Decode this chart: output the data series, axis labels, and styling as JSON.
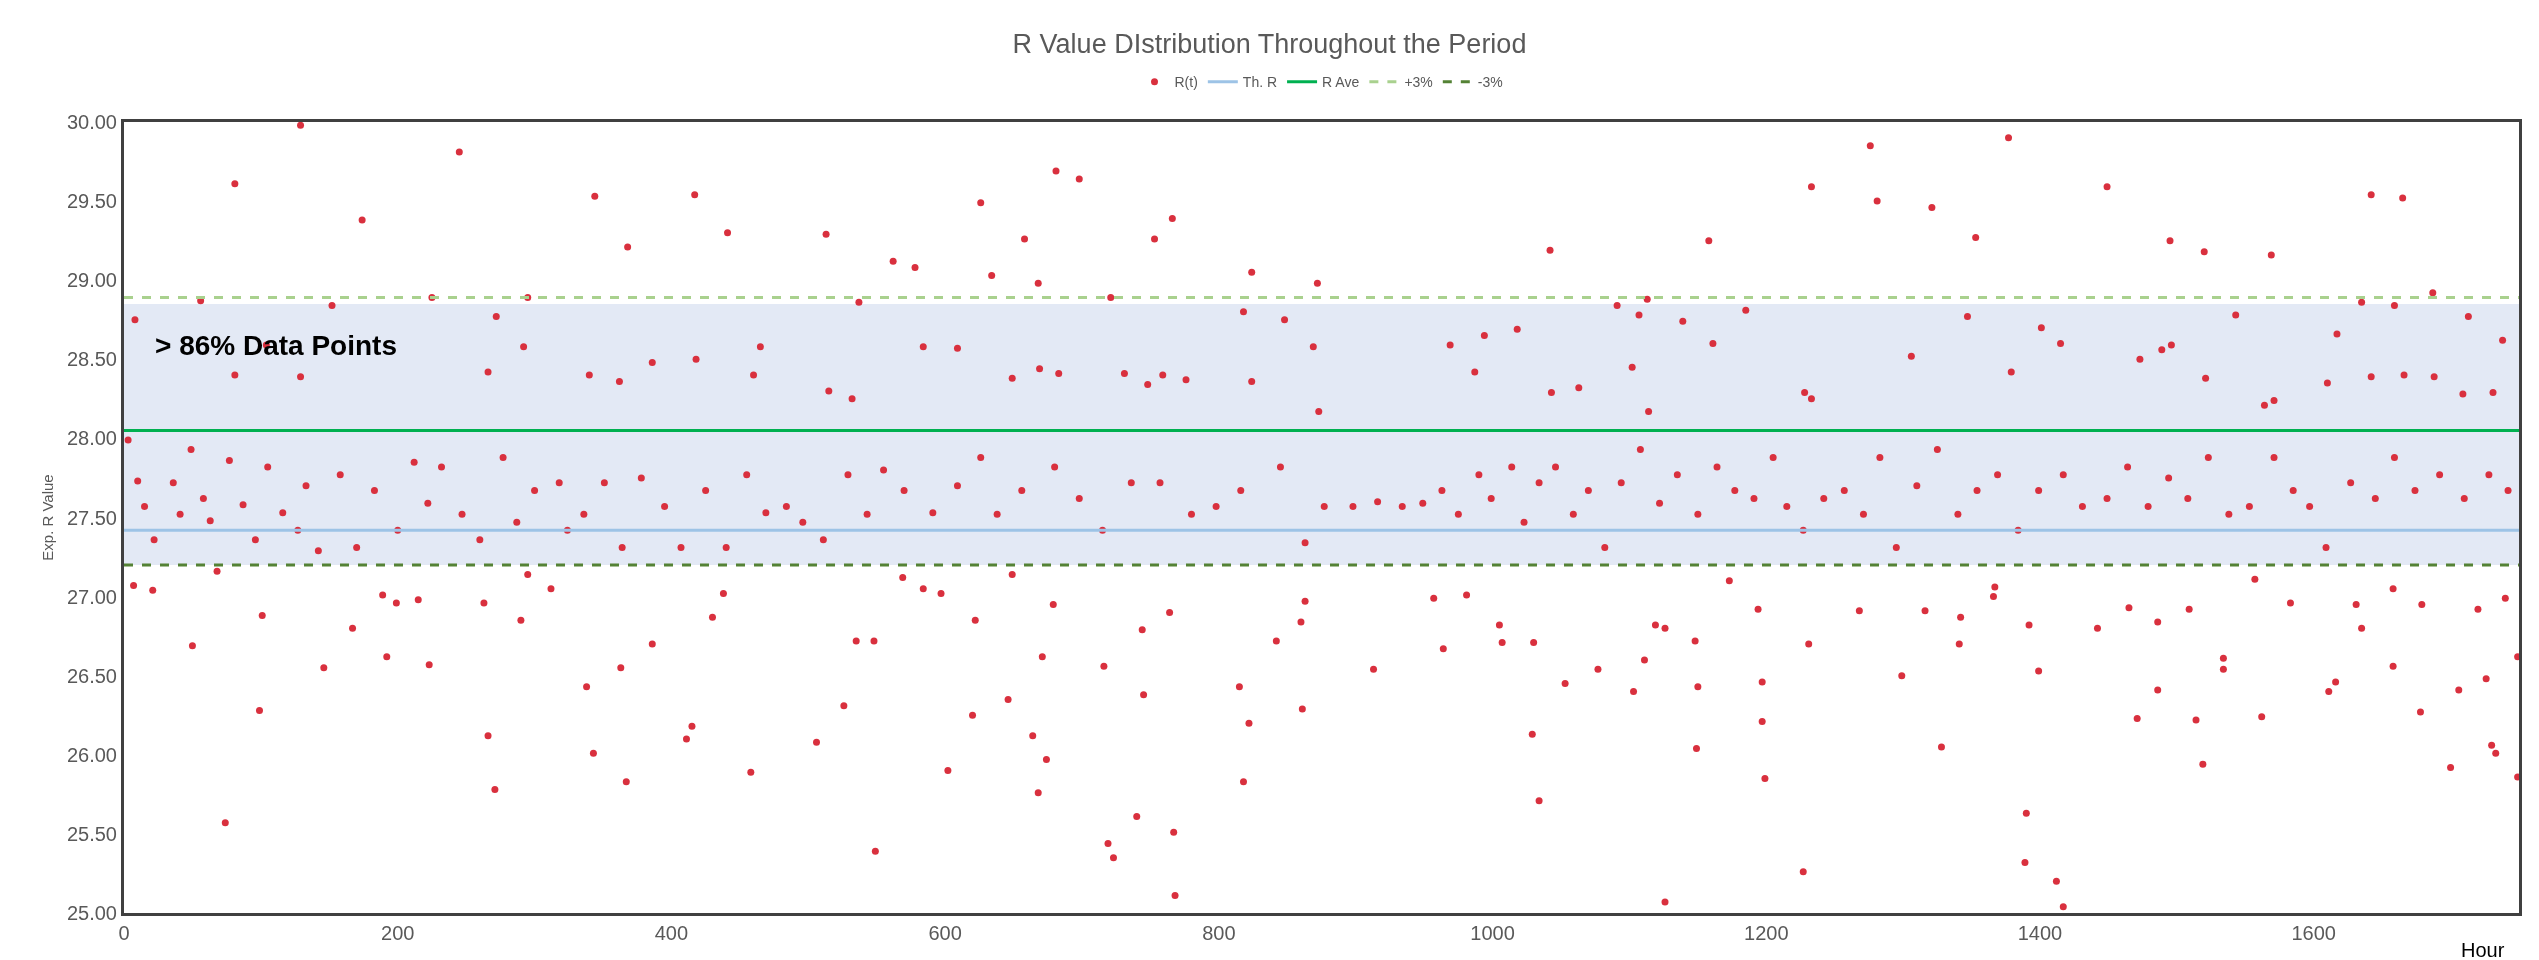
{
  "chart_data": {
    "type": "scatter",
    "title": "R Value DIstribution Throughout the Period",
    "xlabel": "Hour",
    "ylabel": "Exp. R Value",
    "xlim": [
      0,
      1750
    ],
    "xticks": [
      0,
      200,
      400,
      600,
      800,
      1000,
      1200,
      1400,
      1600
    ],
    "ylim": [
      25,
      30
    ],
    "yticks": [
      {
        "value": 25,
        "label": "25.00"
      },
      {
        "value": 25.5,
        "label": "25.50"
      },
      {
        "value": 26,
        "label": "26.00"
      },
      {
        "value": 26.5,
        "label": "26.50"
      },
      {
        "value": 27,
        "label": "27.00"
      },
      {
        "value": 27.5,
        "label": "27.50"
      },
      {
        "value": 28,
        "label": "28.00"
      },
      {
        "value": 28.5,
        "label": "28.50"
      },
      {
        "value": 29,
        "label": "29.00"
      },
      {
        "value": 29.5,
        "label": "29.50"
      },
      {
        "value": 30,
        "label": "30.00"
      }
    ],
    "grid": false,
    "legend": "top",
    "bands": [
      {
        "axis": "y",
        "from": 27.2,
        "to": 28.85,
        "label": "> 86% Data Points",
        "color": "#e3e9f5"
      }
    ],
    "series": [
      {
        "name": "R(t)",
        "marker": "circle",
        "color": "#d9303e",
        "x": [
          129,
          81,
          245,
          174,
          344,
          417,
          441,
          368,
          513,
          562,
          578,
          626,
          634,
          658,
          681,
          698,
          668,
          753,
          766,
          824,
          56,
          225,
          295,
          537,
          721,
          8,
          272,
          152,
          818,
          104,
          292,
          465,
          584,
          609,
          386,
          418,
          669,
          683,
          731,
          748,
          759,
          776,
          460,
          266,
          81,
          129,
          340,
          649,
          515,
          532,
          824,
          362,
          74,
          99,
          50,
          146,
          101,
          167,
          192,
          223,
          266,
          271,
          290,
          338,
          343,
          363,
          367,
          386,
          411,
          415,
          430,
          438,
          458,
          506,
          526,
          535,
          549,
          548,
          602,
          620,
          622,
          646,
          664,
          668,
          674,
          671,
          679,
          716,
          719,
          723,
          740,
          745,
          744,
          767,
          768,
          764,
          815,
          818,
          822,
          7,
          68,
          21,
          189,
          215,
          199,
          263,
          295,
          312,
          569,
          584,
          597,
          649,
          3,
          10,
          15,
          22,
          36,
          41,
          49,
          58,
          63,
          77,
          87,
          96,
          105,
          116,
          127,
          133,
          142,
          158,
          170,
          183,
          200,
          212,
          222,
          232,
          247,
          260,
          277,
          287,
          300,
          318,
          324,
          336,
          351,
          364,
          378,
          395,
          407,
          425,
          440,
          455,
          469,
          484,
          496,
          511,
          529,
          543,
          555,
          570,
          591,
          609,
          626,
          638,
          656,
          680,
          698,
          715,
          736,
          757,
          780,
          798,
          816,
          1276,
          1377,
          1233,
          1281,
          1321,
          1449,
          1642,
          1665,
          1042,
          1158,
          1353,
          1495,
          1520,
          1569,
          872,
          1113,
          1687,
          1091,
          1107,
          1635,
          1659,
          848,
          1139,
          1185,
          1543,
          1713,
          1347,
          969,
          869,
          994,
          1018,
          1161,
          1401,
          1415,
          1489,
          1496,
          1617,
          1738,
          1102,
          1306,
          987,
          1379,
          1473,
          1521,
          1642,
          1666,
          1688,
          1610,
          1228,
          1233,
          1709,
          1731,
          1063,
          1043,
          873,
          1114,
          1564,
          1571,
          861,
          913,
          1029,
          1034,
          1126,
          1053,
          1077,
          1103,
          1111,
          1150,
          1149,
          1148,
          1197,
          1197,
          1199,
          1227,
          1231,
          1299,
          1328,
          1341,
          1390,
          1389,
          1412,
          1417,
          1399,
          1486,
          1471,
          1514,
          1519,
          1534,
          1534,
          1562,
          1611,
          1616,
          1658,
          1678,
          1706,
          1700,
          1726,
          1730,
          1733,
          1749,
          1749,
          860,
          842,
          863,
          964,
          957,
          981,
          1005,
          1007,
          1030,
          1119,
          1126,
          1173,
          1194,
          1268,
          1316,
          1342,
          1366,
          1367,
          1392,
          1442,
          1465,
          1486,
          1509,
          1557,
          1583,
          1631,
          1635,
          1658,
          1679,
          1720,
          1740,
          845,
          863,
          877,
          898,
          916,
          934,
          949,
          963,
          975,
          990,
          999,
          1014,
          1023,
          1034,
          1046,
          1059,
          1070,
          1082,
          1094,
          1108,
          1122,
          1135,
          1150,
          1164,
          1177,
          1191,
          1205,
          1215,
          1227,
          1242,
          1257,
          1271,
          1283,
          1295,
          1310,
          1325,
          1340,
          1354,
          1369,
          1384,
          1399,
          1417,
          1431,
          1449,
          1464,
          1479,
          1494,
          1508,
          1523,
          1538,
          1553,
          1571,
          1585,
          1597,
          1609,
          1627,
          1645,
          1659,
          1674,
          1692,
          1710,
          1728,
          1742
        ],
        "values": [
          29.98,
          29.61,
          29.81,
          29.38,
          29.53,
          29.54,
          29.3,
          29.21,
          29.29,
          29.12,
          29.08,
          29.49,
          29.03,
          29.26,
          29.69,
          29.64,
          28.98,
          29.26,
          29.39,
          29.05,
          28.87,
          28.89,
          28.89,
          28.86,
          28.89,
          28.75,
          28.77,
          28.84,
          28.8,
          28.59,
          28.58,
          28.58,
          28.58,
          28.57,
          28.48,
          28.5,
          28.44,
          28.41,
          28.41,
          28.34,
          28.4,
          28.37,
          28.4,
          28.42,
          28.4,
          28.39,
          28.4,
          28.38,
          28.3,
          28.25,
          28.36,
          28.36,
          25.57,
          26.28,
          26.69,
          26.55,
          26.88,
          26.8,
          26.62,
          26.57,
          26.12,
          25.78,
          26.85,
          26.43,
          26.01,
          26.55,
          25.83,
          26.7,
          26.1,
          26.18,
          26.87,
          27.02,
          25.89,
          26.08,
          26.31,
          26.72,
          25.39,
          26.72,
          25.9,
          26.25,
          26.85,
          26.35,
          26.12,
          25.76,
          25.97,
          26.62,
          26.95,
          26.56,
          25.44,
          25.35,
          25.61,
          26.38,
          26.79,
          25.51,
          25.11,
          26.9,
          26.43,
          25.83,
          26.2,
          27.07,
          27.16,
          27.04,
          27.01,
          26.98,
          26.96,
          26.96,
          27.14,
          27.05,
          27.12,
          27.05,
          27.02,
          27.14,
          27.99,
          27.73,
          27.57,
          27.36,
          27.72,
          27.52,
          27.93,
          27.62,
          27.48,
          27.86,
          27.58,
          27.36,
          27.82,
          27.53,
          27.42,
          27.7,
          27.29,
          27.77,
          27.31,
          27.67,
          27.42,
          27.85,
          27.59,
          27.82,
          27.52,
          27.36,
          27.88,
          27.47,
          27.67,
          27.72,
          27.42,
          27.52,
          27.72,
          27.31,
          27.75,
          27.57,
          27.31,
          27.67,
          27.31,
          27.77,
          27.53,
          27.57,
          27.47,
          27.36,
          27.77,
          27.52,
          27.8,
          27.67,
          27.53,
          27.7,
          27.88,
          27.52,
          27.67,
          27.82,
          27.62,
          27.42,
          27.72,
          27.72,
          27.52,
          27.57,
          27.67,
          29.85,
          29.9,
          29.59,
          29.5,
          29.46,
          29.59,
          29.54,
          29.52,
          29.19,
          29.25,
          29.27,
          29.25,
          29.18,
          29.16,
          28.98,
          28.88,
          28.92,
          28.84,
          28.78,
          28.86,
          28.84,
          28.75,
          28.74,
          28.81,
          28.78,
          28.77,
          28.77,
          28.59,
          28.58,
          28.65,
          28.69,
          28.6,
          28.7,
          28.6,
          28.56,
          28.59,
          28.66,
          28.62,
          28.45,
          28.52,
          28.42,
          28.42,
          28.5,
          28.38,
          28.39,
          28.4,
          28.39,
          28.35,
          28.29,
          28.25,
          28.28,
          28.29,
          28.32,
          28.29,
          28.17,
          28.17,
          28.21,
          28.24,
          26.29,
          26.54,
          26.13,
          25.71,
          25.07,
          26.45,
          26.54,
          26.4,
          26.6,
          26.43,
          26.04,
          26.72,
          26.46,
          26.21,
          25.85,
          25.26,
          26.7,
          26.5,
          26.05,
          26.7,
          25.63,
          25.32,
          25.2,
          25.04,
          26.53,
          26.41,
          26.23,
          26.22,
          25.94,
          26.61,
          26.54,
          26.24,
          26.4,
          26.46,
          26.56,
          26.27,
          26.41,
          25.92,
          26.48,
          26.06,
          26.01,
          25.86,
          26.62,
          26.84,
          26.72,
          26.97,
          26.67,
          26.99,
          27.01,
          26.82,
          26.71,
          26.71,
          26.82,
          26.8,
          27.1,
          26.92,
          26.91,
          26.91,
          26.87,
          27,
          27.06,
          26.82,
          26.8,
          26.93,
          26.84,
          26.92,
          27.11,
          26.96,
          26.95,
          26.8,
          27.05,
          26.95,
          26.92,
          26.99,
          27.82,
          27.34,
          27.57,
          27.57,
          27.6,
          27.57,
          27.59,
          27.67,
          27.52,
          27.77,
          27.62,
          27.82,
          27.47,
          27.72,
          27.82,
          27.52,
          27.67,
          27.31,
          27.72,
          27.93,
          27.59,
          27.77,
          27.52,
          27.82,
          27.67,
          27.62,
          27.88,
          27.57,
          27.42,
          27.62,
          27.67,
          27.52,
          27.88,
          27.31,
          27.7,
          27.93,
          27.52,
          27.67,
          27.77,
          27.42,
          27.67,
          27.77,
          27.57,
          27.62,
          27.82,
          27.57,
          27.75,
          27.62,
          27.88,
          27.52,
          27.57,
          27.88,
          27.67,
          27.57,
          27.31,
          27.72,
          27.62,
          27.88,
          27.67,
          27.77,
          27.62,
          27.77,
          27.67
        ]
      },
      {
        "name": "Th. R",
        "type": "line",
        "color": "#9dc3e6",
        "line_style": "solid",
        "marker": "none",
        "x": [
          0,
          1750
        ],
        "values": [
          27.42,
          27.42
        ]
      },
      {
        "name": "R Ave",
        "type": "line",
        "color": "#00b050",
        "line_style": "solid",
        "marker": "none",
        "x": [
          0,
          1750
        ],
        "values": [
          28.05,
          28.05
        ]
      },
      {
        "name": "+3%",
        "type": "line",
        "color": "#a9d18e",
        "line_style": "dashed",
        "marker": "none",
        "x": [
          0,
          1750
        ],
        "values": [
          28.89,
          28.89
        ]
      },
      {
        "name": "-3%",
        "type": "line",
        "color": "#548235",
        "line_style": "dashed",
        "marker": "none",
        "x": [
          0,
          1750
        ],
        "values": [
          27.2,
          27.2
        ]
      }
    ]
  }
}
